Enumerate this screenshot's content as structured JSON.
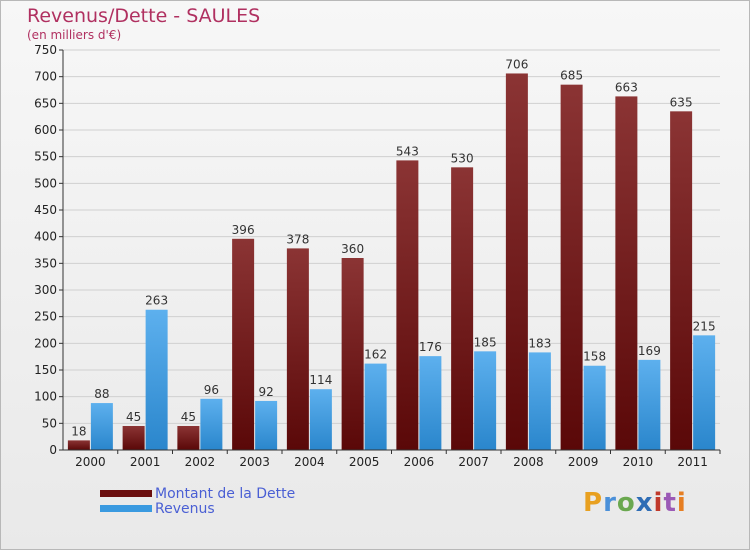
{
  "header": {
    "title": "Revenus/Dette - SAULES",
    "unit": "(en milliers d'€)"
  },
  "legend": {
    "dette_label": "Montant de la Dette",
    "revenus_label": "Revenus"
  },
  "logo": {
    "letters": [
      "P",
      "r",
      "o",
      "x",
      "i",
      "t",
      "i"
    ]
  },
  "colors": {
    "dette": "#7a1a1a",
    "revenus": "#3a9ae0"
  },
  "chart_data": {
    "type": "bar",
    "title": "Revenus/Dette - SAULES",
    "ylabel": "(en milliers d'€)",
    "categories": [
      "2000",
      "2001",
      "2002",
      "2003",
      "2004",
      "2005",
      "2006",
      "2007",
      "2008",
      "2009",
      "2010",
      "2011"
    ],
    "ylim": [
      0,
      750
    ],
    "yticks": [
      0,
      50,
      100,
      150,
      200,
      250,
      300,
      350,
      400,
      450,
      500,
      550,
      600,
      650,
      700,
      750
    ],
    "series": [
      {
        "name": "Montant de la Dette",
        "values": [
          18,
          45,
          45,
          396,
          378,
          360,
          543,
          530,
          706,
          685,
          663,
          635
        ]
      },
      {
        "name": "Revenus",
        "values": [
          88,
          263,
          96,
          92,
          114,
          162,
          176,
          185,
          183,
          158,
          169,
          215
        ]
      }
    ]
  }
}
